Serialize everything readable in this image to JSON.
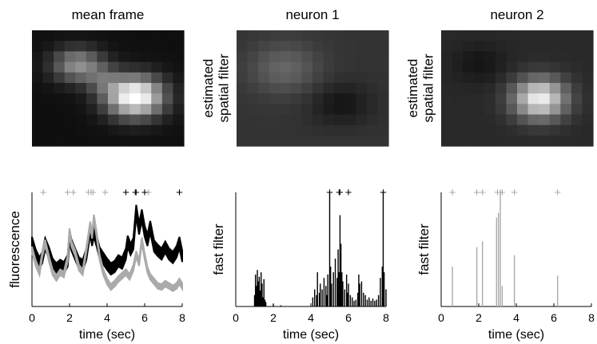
{
  "chart_data": [
    {
      "type": "heatmap",
      "title": "mean frame",
      "ylabel": "",
      "cols": 14,
      "rows": 11,
      "blobs": [
        {
          "cx": 9.5,
          "cy": 6.3,
          "sx": 2.6,
          "sy": 1.9,
          "a": 1.0
        },
        {
          "cx": 4.2,
          "cy": 3.3,
          "sx": 2.3,
          "sy": 1.6,
          "a": 0.5
        },
        {
          "cx": 6.6,
          "cy": 4.7,
          "sx": 1.6,
          "sy": 1.4,
          "a": 0.22
        }
      ],
      "base": 0.06
    },
    {
      "type": "heatmap",
      "title": "neuron 1",
      "ylabel": "estimated spatial filter",
      "ylabel_lines": [
        "estimated",
        "spatial filter"
      ],
      "cols": 14,
      "rows": 11,
      "blobs": [
        {
          "cx": 4.4,
          "cy": 3.6,
          "sx": 3.2,
          "sy": 2.4,
          "a": 0.2
        },
        {
          "cx": 9.6,
          "cy": 7.0,
          "sx": 2.8,
          "sy": 2.0,
          "a": -0.12
        }
      ],
      "base": 0.2
    },
    {
      "type": "heatmap",
      "title": "neuron 2",
      "ylabel": "estimated spatial filter",
      "ylabel_lines": [
        "estimated",
        "spatial filter"
      ],
      "cols": 14,
      "rows": 11,
      "blobs": [
        {
          "cx": 9.1,
          "cy": 6.5,
          "sx": 2.4,
          "sy": 1.9,
          "a": 0.78
        },
        {
          "cx": 3.5,
          "cy": 3.2,
          "sx": 2.4,
          "sy": 1.8,
          "a": -0.08
        }
      ],
      "base": 0.16
    },
    {
      "type": "line",
      "title": "",
      "xlabel": "time (sec)",
      "ylabel": "fluorescence",
      "xlim": [
        0,
        8
      ],
      "ylim": [
        0,
        1
      ],
      "xticks": [
        0,
        2,
        4,
        6,
        8
      ],
      "series": [
        {
          "color": "#000000",
          "x": [
            0,
            0.2,
            0.4,
            0.55,
            0.7,
            0.9,
            1.1,
            1.3,
            1.5,
            1.7,
            1.9,
            2.0,
            2.1,
            2.3,
            2.5,
            2.7,
            2.9,
            3.1,
            3.2,
            3.3,
            3.45,
            3.6,
            3.8,
            4.0,
            4.2,
            4.4,
            4.6,
            4.8,
            5.0,
            5.1,
            5.25,
            5.4,
            5.55,
            5.7,
            5.85,
            6.0,
            6.15,
            6.3,
            6.5,
            6.7,
            6.9,
            7.1,
            7.3,
            7.5,
            7.7,
            7.85,
            8.0
          ],
          "y": [
            0.56,
            0.45,
            0.38,
            0.43,
            0.55,
            0.47,
            0.37,
            0.33,
            0.36,
            0.34,
            0.4,
            0.62,
            0.54,
            0.46,
            0.38,
            0.36,
            0.46,
            0.68,
            0.58,
            0.66,
            0.57,
            0.47,
            0.42,
            0.37,
            0.33,
            0.35,
            0.4,
            0.38,
            0.46,
            0.57,
            0.5,
            0.55,
            0.84,
            0.68,
            0.8,
            0.66,
            0.58,
            0.7,
            0.53,
            0.49,
            0.46,
            0.52,
            0.46,
            0.43,
            0.48,
            0.56,
            0.44
          ],
          "band": 0.05
        },
        {
          "color": "#aaaaaa",
          "x": [
            0,
            0.2,
            0.4,
            0.55,
            0.7,
            0.9,
            1.1,
            1.3,
            1.5,
            1.7,
            1.9,
            2.0,
            2.1,
            2.3,
            2.5,
            2.7,
            2.9,
            3.1,
            3.2,
            3.3,
            3.45,
            3.6,
            3.8,
            4.0,
            4.2,
            4.4,
            4.6,
            4.8,
            5.0,
            5.2,
            5.4,
            5.55,
            5.7,
            5.85,
            6.0,
            6.15,
            6.3,
            6.5,
            6.7,
            6.9,
            7.1,
            7.3,
            7.5,
            7.7,
            7.85,
            8.0
          ],
          "y": [
            0.5,
            0.38,
            0.3,
            0.46,
            0.56,
            0.42,
            0.3,
            0.25,
            0.3,
            0.28,
            0.42,
            0.66,
            0.55,
            0.47,
            0.34,
            0.3,
            0.5,
            0.72,
            0.62,
            0.78,
            0.62,
            0.43,
            0.3,
            0.22,
            0.17,
            0.2,
            0.24,
            0.27,
            0.3,
            0.26,
            0.34,
            0.46,
            0.38,
            0.58,
            0.44,
            0.32,
            0.26,
            0.22,
            0.18,
            0.17,
            0.2,
            0.18,
            0.16,
            0.18,
            0.22,
            0.18
          ],
          "band": 0.025
        }
      ],
      "spike_markers": [
        {
          "color": "#aaaaaa",
          "times": [
            0.6,
            1.9,
            2.2,
            3.0,
            3.15,
            3.25,
            3.9,
            6.2
          ]
        },
        {
          "color": "#000000",
          "times": [
            5.0,
            5.5,
            5.55,
            6.0,
            7.85
          ]
        }
      ]
    },
    {
      "type": "bar",
      "title": "",
      "xlabel": "time (sec)",
      "ylabel": "fast filter",
      "xlim": [
        0,
        8
      ],
      "ylim": [
        0,
        1
      ],
      "xticks": [
        0,
        2,
        4,
        6,
        8
      ],
      "bar_color": "#000000",
      "x": [
        1.0,
        1.05,
        1.1,
        1.15,
        1.2,
        1.25,
        1.3,
        1.35,
        1.4,
        1.45,
        1.5,
        1.55,
        1.6,
        2.0,
        2.4,
        4.1,
        4.2,
        4.3,
        4.35,
        4.45,
        4.5,
        4.6,
        4.7,
        4.8,
        4.85,
        4.9,
        5.0,
        5.05,
        5.1,
        5.2,
        5.3,
        5.4,
        5.45,
        5.5,
        5.55,
        5.6,
        5.65,
        5.7,
        5.8,
        5.9,
        5.95,
        6.0,
        6.1,
        6.2,
        6.3,
        6.4,
        6.5,
        6.55,
        6.6,
        6.7,
        6.8,
        6.9,
        7.0,
        7.1,
        7.2,
        7.3,
        7.4,
        7.5,
        7.6,
        7.7,
        7.8,
        7.85,
        7.9,
        8.0
      ],
      "values": [
        0.1,
        0.28,
        0.18,
        0.32,
        0.22,
        0.26,
        0.14,
        0.3,
        0.2,
        0.08,
        0.24,
        0.06,
        0.04,
        0.02,
        0.01,
        0.08,
        0.15,
        0.1,
        0.3,
        0.12,
        0.2,
        0.15,
        0.25,
        0.18,
        0.1,
        0.28,
        1.0,
        0.35,
        0.2,
        0.3,
        0.42,
        0.25,
        0.5,
        0.3,
        0.8,
        0.55,
        0.3,
        0.22,
        0.15,
        0.28,
        0.12,
        0.2,
        0.1,
        0.08,
        0.05,
        0.06,
        0.12,
        0.28,
        0.2,
        0.22,
        0.12,
        0.1,
        0.06,
        0.08,
        0.05,
        0.07,
        0.05,
        0.06,
        0.1,
        0.25,
        0.35,
        1.0,
        0.3,
        0.15
      ],
      "spike_markers": [
        {
          "color": "#000000",
          "times": [
            5.0,
            5.5,
            5.55,
            6.0,
            7.85
          ]
        }
      ]
    },
    {
      "type": "bar",
      "title": "",
      "xlabel": "time (sec)",
      "ylabel": "fast filter",
      "xlim": [
        0,
        8
      ],
      "ylim": [
        0,
        1
      ],
      "xticks": [
        0,
        2,
        4,
        6,
        8
      ],
      "bar_color": "#aaaaaa",
      "x": [
        0.6,
        1.9,
        2.2,
        2.95,
        3.05,
        3.15,
        3.25,
        3.9,
        6.2
      ],
      "values": [
        0.35,
        0.52,
        0.57,
        0.78,
        0.82,
        1.0,
        0.18,
        0.45,
        0.27
      ],
      "spike_markers": [
        {
          "color": "#aaaaaa",
          "times": [
            0.6,
            1.9,
            2.2,
            3.0,
            3.15,
            3.25,
            3.9,
            6.2
          ]
        }
      ]
    }
  ]
}
